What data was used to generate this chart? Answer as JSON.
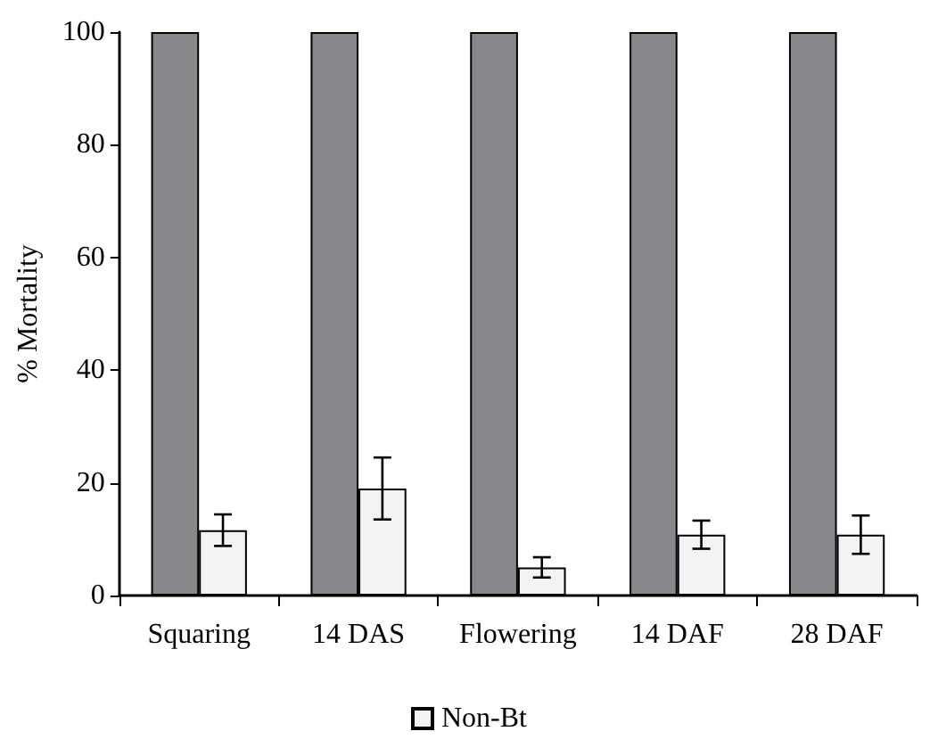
{
  "chart_data": {
    "type": "bar",
    "ylabel": "% Mortality",
    "categories": [
      "Squaring",
      "14 DAS",
      "Flowering",
      "14 DAF",
      "28 DAF"
    ],
    "series": [
      {
        "color": "#87878c",
        "values": [
          100,
          100,
          100,
          100,
          100
        ]
      },
      {
        "name": "Non-Bt",
        "color": "#f2f3f2",
        "values": [
          11.6,
          19.0,
          5.0,
          10.8,
          10.8
        ],
        "errors": [
          2.8,
          5.5,
          1.8,
          2.5,
          3.4
        ]
      }
    ],
    "ylim": [
      0,
      100
    ],
    "yticks": [
      0,
      20,
      40,
      60,
      80,
      100
    ],
    "grid": false,
    "legend": "bottom"
  }
}
